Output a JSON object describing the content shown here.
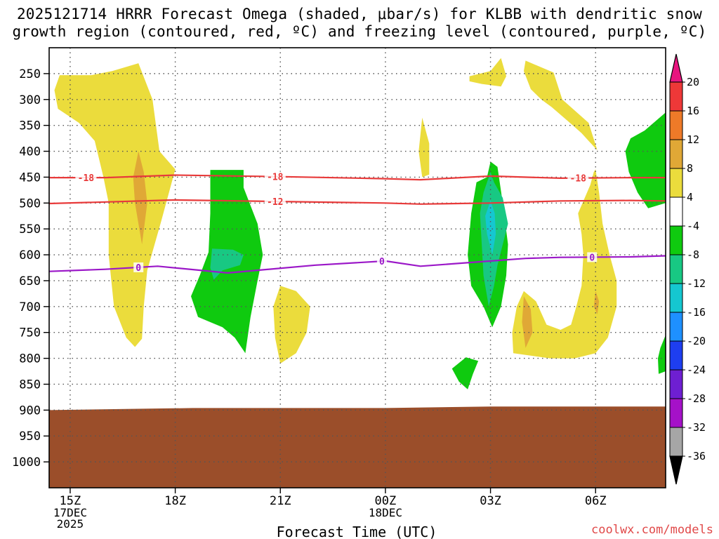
{
  "chart_data": {
    "type": "contour-cross-section",
    "title_line1": "2025121714 HRRR Forecast Omega (shaded, μbar/s) for KLBB with dendritic snow",
    "title_line2": "growth region (contoured, red, ºC) and freezing level (contoured, purple, ºC)",
    "xlabel": "Forecast Time (UTC)",
    "credit": "coolwx.com/models",
    "x_ticks": [
      {
        "label": "15Z",
        "t": 0,
        "sub": [
          "17DEC",
          "2025"
        ]
      },
      {
        "label": "18Z",
        "t": 3,
        "sub": []
      },
      {
        "label": "21Z",
        "t": 6,
        "sub": []
      },
      {
        "label": "00Z",
        "t": 9,
        "sub": [
          "18DEC"
        ]
      },
      {
        "label": "03Z",
        "t": 12,
        "sub": []
      },
      {
        "label": "06Z",
        "t": 15,
        "sub": []
      }
    ],
    "xlim": [
      -0.6,
      17.0
    ],
    "y_axis": {
      "unit": "hPa",
      "ylim": [
        200,
        1050
      ],
      "ticks": [
        250,
        300,
        350,
        400,
        450,
        500,
        550,
        600,
        650,
        700,
        750,
        800,
        850,
        900,
        950,
        1000
      ]
    },
    "colorbar": {
      "labels": [
        "20",
        "16",
        "12",
        "8",
        "4",
        "-4",
        "-8",
        "-12",
        "-16",
        "-20",
        "-24",
        "-28",
        "-32",
        "-36"
      ],
      "bins": [
        {
          "from": 20,
          "color": "#e8157f"
        },
        {
          "from": 16,
          "to": 20,
          "color": "#ee3838"
        },
        {
          "from": 12,
          "to": 16,
          "color": "#ee7a28"
        },
        {
          "from": 8,
          "to": 12,
          "color": "#e0a836"
        },
        {
          "from": 4,
          "to": 8,
          "color": "#ebdc3c"
        },
        {
          "from": -4,
          "to": 4,
          "color": "#ffffff"
        },
        {
          "from": -8,
          "to": -4,
          "color": "#0fca0f"
        },
        {
          "from": -12,
          "to": -8,
          "color": "#18c883"
        },
        {
          "from": -16,
          "to": -12,
          "color": "#15c7d0"
        },
        {
          "from": -20,
          "to": -16,
          "color": "#1e90ff"
        },
        {
          "from": -24,
          "to": -20,
          "color": "#1e3ef0"
        },
        {
          "from": -28,
          "to": -24,
          "color": "#6e1fd2"
        },
        {
          "from": -32,
          "to": -28,
          "color": "#a511c8"
        },
        {
          "from": -36,
          "to": -32,
          "color": "#a6a6a6"
        },
        {
          "to": -36,
          "color": "#000000"
        }
      ]
    },
    "contours": [
      {
        "name": "isotherm -18C",
        "value": -18,
        "label": "-18",
        "color": "#e83a3a",
        "t": [
          -0.6,
          1,
          3,
          6,
          9,
          10,
          12,
          14,
          16,
          17
        ],
        "p": [
          451,
          451,
          446,
          449,
          453,
          455,
          448,
          452,
          451,
          451
        ],
        "label_t": [
          0.45,
          5.85,
          14.5
        ]
      },
      {
        "name": "isotherm -12C",
        "value": -12,
        "label": "-12",
        "color": "#e83a3a",
        "t": [
          -0.6,
          1,
          3,
          6,
          9,
          10,
          12,
          14,
          16,
          17
        ],
        "p": [
          501,
          498,
          494,
          497,
          500,
          502,
          500,
          496,
          495,
          496
        ],
        "label_t": [
          5.85
        ]
      },
      {
        "name": "freezing level 0C",
        "value": 0,
        "label": "0",
        "color": "#9b18c8",
        "t": [
          -0.6,
          1,
          2.5,
          4.5,
          7,
          9,
          10,
          12,
          13,
          14,
          16,
          17
        ],
        "p": [
          632,
          628,
          622,
          635,
          620,
          612,
          622,
          612,
          607,
          605,
          604,
          602
        ],
        "label_t": [
          1.95,
          8.9,
          14.9
        ]
      }
    ],
    "omega_regions": [
      {
        "level": "4 to 8",
        "color": "#ebdc3c",
        "pts": [
          [
            -0.45,
            282
          ],
          [
            -0.3,
            253
          ],
          [
            0.6,
            253
          ],
          [
            1.2,
            245
          ],
          [
            1.95,
            230
          ],
          [
            2.35,
            300
          ],
          [
            2.55,
            400
          ],
          [
            3.0,
            435
          ],
          [
            2.6,
            535
          ],
          [
            2.2,
            630
          ],
          [
            2.1,
            700
          ],
          [
            2.05,
            762
          ],
          [
            1.85,
            778
          ],
          [
            1.6,
            760
          ],
          [
            1.25,
            700
          ],
          [
            1.1,
            600
          ],
          [
            1.1,
            500
          ],
          [
            0.95,
            450
          ],
          [
            0.7,
            380
          ],
          [
            0.25,
            345
          ],
          [
            -0.35,
            318
          ]
        ]
      },
      {
        "level": "8 to 12",
        "color": "#e0a836",
        "pts": [
          [
            1.95,
            400
          ],
          [
            2.1,
            440
          ],
          [
            2.2,
            500
          ],
          [
            2.05,
            580
          ],
          [
            1.85,
            500
          ],
          [
            1.8,
            450
          ]
        ]
      },
      {
        "level": "-8 to -4",
        "color": "#0fca0f",
        "pts": [
          [
            4.0,
            436
          ],
          [
            4.95,
            436
          ],
          [
            4.95,
            470
          ],
          [
            5.35,
            540
          ],
          [
            5.5,
            600
          ],
          [
            5.35,
            650
          ],
          [
            5.15,
            720
          ],
          [
            5.0,
            790
          ],
          [
            4.7,
            760
          ],
          [
            4.35,
            740
          ],
          [
            4.0,
            730
          ],
          [
            3.65,
            720
          ],
          [
            3.45,
            680
          ],
          [
            3.7,
            640
          ],
          [
            3.95,
            595
          ],
          [
            4.0,
            520
          ]
        ]
      },
      {
        "level": "-12 to -8",
        "color": "#18c883",
        "pts": [
          [
            4.05,
            588
          ],
          [
            4.65,
            590
          ],
          [
            4.95,
            600
          ],
          [
            4.85,
            620
          ],
          [
            4.35,
            630
          ],
          [
            4.1,
            648
          ],
          [
            4.0,
            625
          ]
        ]
      },
      {
        "level": "4 to 8",
        "color": "#ebdc3c",
        "pts": [
          [
            6.0,
            660
          ],
          [
            6.45,
            670
          ],
          [
            6.85,
            700
          ],
          [
            6.75,
            750
          ],
          [
            6.45,
            790
          ],
          [
            6.0,
            810
          ],
          [
            5.85,
            760
          ],
          [
            5.8,
            700
          ]
        ]
      },
      {
        "level": "4 to 8",
        "color": "#ebdc3c",
        "pts": [
          [
            10.05,
            335
          ],
          [
            10.25,
            385
          ],
          [
            10.25,
            445
          ],
          [
            10.05,
            450
          ],
          [
            9.95,
            400
          ]
        ]
      },
      {
        "level": "4 to 8",
        "color": "#ebdc3c",
        "pts": [
          [
            11.4,
            255
          ],
          [
            12.0,
            245
          ],
          [
            12.3,
            220
          ],
          [
            12.45,
            255
          ],
          [
            12.3,
            275
          ],
          [
            11.75,
            270
          ],
          [
            11.4,
            265
          ]
        ]
      },
      {
        "level": "-8 to -4",
        "color": "#0fca0f",
        "pts": [
          [
            11.9,
            450
          ],
          [
            12.0,
            420
          ],
          [
            12.2,
            430
          ],
          [
            12.35,
            500
          ],
          [
            12.5,
            580
          ],
          [
            12.45,
            640
          ],
          [
            12.3,
            700
          ],
          [
            12.05,
            740
          ],
          [
            11.8,
            700
          ],
          [
            11.45,
            660
          ],
          [
            11.35,
            600
          ],
          [
            11.45,
            520
          ],
          [
            11.6,
            460
          ]
        ]
      },
      {
        "level": "-12 to -8",
        "color": "#18c883",
        "pts": [
          [
            12.0,
            440
          ],
          [
            12.1,
            460
          ],
          [
            12.35,
            490
          ],
          [
            12.5,
            540
          ],
          [
            12.35,
            580
          ],
          [
            12.2,
            620
          ],
          [
            12.1,
            660
          ],
          [
            11.95,
            700
          ],
          [
            11.8,
            640
          ],
          [
            11.75,
            580
          ],
          [
            11.7,
            520
          ],
          [
            11.8,
            480
          ]
        ]
      },
      {
        "level": "-16 to -12",
        "color": "#15c7d0",
        "pts": [
          [
            12.0,
            495
          ],
          [
            12.12,
            520
          ],
          [
            12.15,
            560
          ],
          [
            12.05,
            600
          ],
          [
            11.9,
            560
          ],
          [
            11.85,
            525
          ]
        ]
      },
      {
        "level": "-8 to -4",
        "color": "#0fca0f",
        "pts": [
          [
            11.3,
            798
          ],
          [
            11.65,
            805
          ],
          [
            11.5,
            830
          ],
          [
            11.35,
            860
          ],
          [
            11.1,
            845
          ],
          [
            10.9,
            820
          ]
        ]
      },
      {
        "level": "4 to 8",
        "color": "#ebdc3c",
        "pts": [
          [
            13.0,
            225
          ],
          [
            13.8,
            248
          ],
          [
            14.05,
            300
          ],
          [
            14.8,
            345
          ],
          [
            15.05,
            398
          ],
          [
            14.8,
            380
          ],
          [
            14.6,
            365
          ],
          [
            14.35,
            350
          ],
          [
            13.75,
            315
          ],
          [
            13.45,
            300
          ],
          [
            13.15,
            280
          ],
          [
            12.95,
            245
          ]
        ]
      },
      {
        "level": "4 to 8",
        "color": "#ebdc3c",
        "pts": [
          [
            15.0,
            435
          ],
          [
            15.1,
            480
          ],
          [
            15.2,
            540
          ],
          [
            15.4,
            600
          ],
          [
            15.6,
            650
          ],
          [
            15.6,
            700
          ],
          [
            15.35,
            760
          ],
          [
            15.0,
            790
          ],
          [
            14.4,
            800
          ],
          [
            13.7,
            800
          ],
          [
            12.65,
            790
          ],
          [
            12.62,
            750
          ],
          [
            12.75,
            700
          ],
          [
            12.95,
            670
          ],
          [
            13.3,
            690
          ],
          [
            13.6,
            735
          ],
          [
            14.0,
            745
          ],
          [
            14.3,
            735
          ],
          [
            14.45,
            700
          ],
          [
            14.6,
            660
          ],
          [
            14.65,
            600
          ],
          [
            14.6,
            560
          ],
          [
            14.5,
            520
          ],
          [
            14.85,
            465
          ],
          [
            14.95,
            440
          ]
        ]
      },
      {
        "level": "8 to 12",
        "color": "#e0a836",
        "pts": [
          [
            12.95,
            680
          ],
          [
            13.15,
            705
          ],
          [
            13.2,
            750
          ],
          [
            13.0,
            780
          ],
          [
            12.9,
            730
          ]
        ]
      },
      {
        "level": "8 to 12",
        "color": "#e0a836",
        "pts": [
          [
            15.0,
            670
          ],
          [
            15.1,
            690
          ],
          [
            15.05,
            715
          ],
          [
            14.95,
            700
          ]
        ]
      },
      {
        "level": "-8 to -4",
        "color": "#0fca0f",
        "pts": [
          [
            16.4,
            360
          ],
          [
            17.0,
            325
          ],
          [
            17.0,
            500
          ],
          [
            16.5,
            510
          ],
          [
            16.2,
            480
          ],
          [
            15.95,
            440
          ],
          [
            15.85,
            400
          ],
          [
            16.0,
            375
          ]
        ]
      },
      {
        "level": "-8 to -4",
        "color": "#0fca0f",
        "pts": [
          [
            16.85,
            780
          ],
          [
            17.0,
            755
          ],
          [
            17.0,
            825
          ],
          [
            16.8,
            830
          ],
          [
            16.78,
            800
          ]
        ]
      }
    ],
    "terrain": {
      "color": "#9b4e2a",
      "p": [
        [
          -0.6,
          900
        ],
        [
          3.5,
          896
        ],
        [
          9,
          896
        ],
        [
          12,
          893
        ],
        [
          17,
          893
        ]
      ]
    }
  }
}
